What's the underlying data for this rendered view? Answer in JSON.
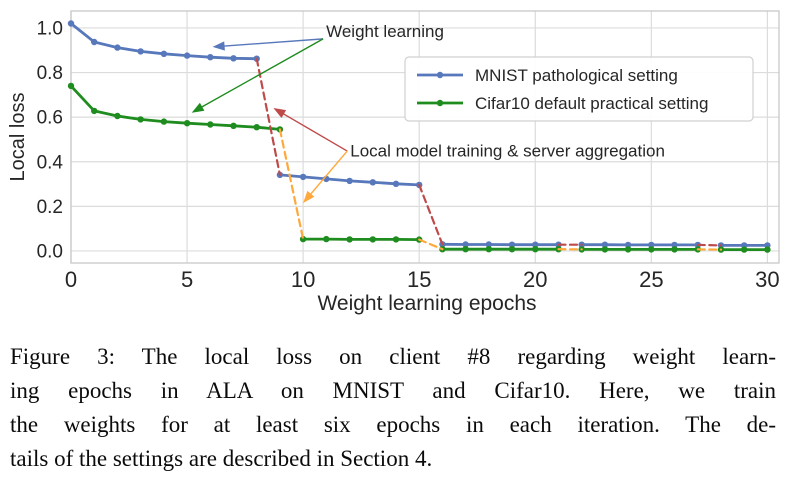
{
  "chart_data": {
    "type": "line",
    "title": "",
    "xlabel": "Weight learning epochs",
    "ylabel": "Local loss",
    "xlim": [
      0,
      30.5
    ],
    "ylim": [
      -0.054,
      1.076
    ],
    "grid": true,
    "xticks": [
      "0",
      "5",
      "10",
      "15",
      "20",
      "25",
      "30"
    ],
    "xtick_values": [
      0,
      5,
      10,
      15,
      20,
      25,
      30
    ],
    "yticks": [
      "0.0",
      "0.2",
      "0.4",
      "0.6",
      "0.8",
      "1.0"
    ],
    "ytick_values": [
      0,
      0.2,
      0.4,
      0.6,
      0.8,
      1.0
    ],
    "colors": {
      "mnist": "#5878BC",
      "cifar": "#1E8C1E",
      "agg_mnist": "#BF4A4A",
      "agg_cifar": "#FFA93D",
      "grid": "#DCDCDC",
      "spine": "#C8C8C8",
      "text": "#262626"
    },
    "series": [
      {
        "name": "MNIST pathological setting",
        "color_key": "mnist",
        "line": "solid",
        "marker": "dot",
        "segments": [
          {
            "x": [
              0,
              1,
              2,
              3,
              4,
              5,
              6,
              7,
              8
            ],
            "y": [
              1.02,
              0.937,
              0.912,
              0.895,
              0.884,
              0.876,
              0.869,
              0.864,
              0.862
            ]
          },
          {
            "x": [
              9,
              10,
              11,
              12,
              13,
              14,
              15
            ],
            "y": [
              0.341,
              0.332,
              0.323,
              0.314,
              0.308,
              0.301,
              0.296
            ]
          },
          {
            "x": [
              16,
              17,
              18,
              19,
              20,
              21
            ],
            "y": [
              0.03,
              0.029,
              0.029,
              0.028,
              0.028,
              0.028
            ]
          },
          {
            "x": [
              22,
              23,
              24,
              25,
              26,
              27
            ],
            "y": [
              0.028,
              0.028,
              0.027,
              0.027,
              0.027,
              0.027
            ]
          },
          {
            "x": [
              28,
              29,
              30
            ],
            "y": [
              0.025,
              0.025,
              0.025
            ]
          }
        ]
      },
      {
        "name": "Cifar10 default practical setting",
        "color_key": "cifar",
        "line": "solid",
        "marker": "dot",
        "segments": [
          {
            "x": [
              0,
              1,
              2,
              3,
              4,
              5,
              6,
              7,
              8,
              9
            ],
            "y": [
              0.74,
              0.628,
              0.605,
              0.59,
              0.58,
              0.573,
              0.567,
              0.561,
              0.555,
              0.545
            ]
          },
          {
            "x": [
              10,
              11,
              12,
              13,
              14,
              15
            ],
            "y": [
              0.053,
              0.053,
              0.052,
              0.052,
              0.052,
              0.051
            ]
          },
          {
            "x": [
              16,
              17,
              18,
              19,
              20,
              21
            ],
            "y": [
              0.008,
              0.008,
              0.008,
              0.008,
              0.008,
              0.008
            ]
          },
          {
            "x": [
              22,
              23,
              24,
              25,
              26,
              27
            ],
            "y": [
              0.007,
              0.007,
              0.007,
              0.007,
              0.007,
              0.007
            ]
          },
          {
            "x": [
              28,
              29,
              30
            ],
            "y": [
              0.006,
              0.006,
              0.006
            ]
          }
        ]
      },
      {
        "name": "MNIST local model training & server aggregation (connector)",
        "color_key": "agg_mnist",
        "line": "dashed",
        "marker": "none",
        "segments": [
          {
            "x": [
              8,
              9
            ],
            "y": [
              0.862,
              0.341
            ]
          },
          {
            "x": [
              15,
              16
            ],
            "y": [
              0.296,
              0.03
            ]
          },
          {
            "x": [
              21,
              22
            ],
            "y": [
              0.028,
              0.028
            ]
          },
          {
            "x": [
              27,
              28
            ],
            "y": [
              0.027,
              0.025
            ]
          }
        ]
      },
      {
        "name": "Cifar10 local model training & server aggregation (connector)",
        "color_key": "agg_cifar",
        "line": "dashed",
        "marker": "none",
        "segments": [
          {
            "x": [
              9,
              10
            ],
            "y": [
              0.545,
              0.053
            ]
          },
          {
            "x": [
              15,
              16
            ],
            "y": [
              0.051,
              0.008
            ]
          },
          {
            "x": [
              21,
              22
            ],
            "y": [
              0.008,
              0.007
            ]
          },
          {
            "x": [
              27,
              28
            ],
            "y": [
              0.007,
              0.006
            ]
          }
        ]
      }
    ],
    "legend": {
      "position": "upper right",
      "entries": [
        {
          "label": "MNIST pathological setting",
          "color_key": "mnist"
        },
        {
          "label": "Cifar10 default practical setting",
          "color_key": "cifar"
        }
      ]
    },
    "annotations": [
      {
        "text": "Weight learning",
        "anchor_xy": [
          10.86,
          0.951
        ],
        "arrows": [
          {
            "xy": [
              6.1,
              0.915
            ],
            "color_key": "mnist"
          },
          {
            "xy": [
              5.2,
              0.62
            ],
            "color_key": "cifar"
          }
        ]
      },
      {
        "text": "Local model training & server aggregation",
        "anchor_xy": [
          11.9,
          0.448
        ],
        "arrows": [
          {
            "xy": [
              8.72,
              0.641
            ],
            "color_key": "agg_mnist"
          },
          {
            "xy": [
              10.0,
              0.215
            ],
            "color_key": "agg_cifar"
          }
        ]
      }
    ]
  },
  "caption": {
    "lines": [
      "Figure 3: The local loss on client #8 regarding weight learn-",
      "ing epochs in ALA on MNIST and Cifar10. Here, we train",
      "the weights for at least six epochs in each iteration. The de-",
      "tails of the settings are described in Section 4."
    ]
  }
}
